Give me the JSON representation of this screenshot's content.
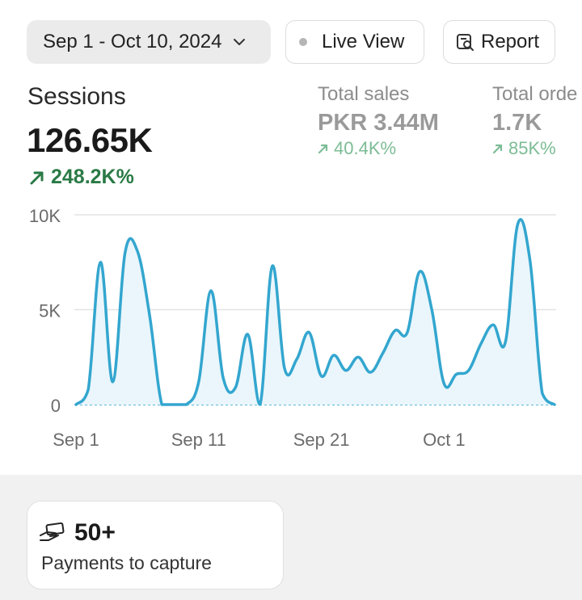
{
  "header": {
    "date_range": "Sep 1 - Oct 10, 2024",
    "live_view_label": "Live View",
    "report_label": "Report"
  },
  "metrics": {
    "sessions": {
      "label": "Sessions",
      "value": "126.65K",
      "change": "248.2K%"
    },
    "total_sales": {
      "label": "Total sales",
      "value": "PKR 3.44M",
      "change": "40.4K%"
    },
    "total_orders": {
      "label": "Total orde",
      "value": "1.7K",
      "change": "85K%"
    }
  },
  "colors": {
    "line": "#33a6cf",
    "fill": "#eaf6fb",
    "positive": "#2a7a46",
    "positive_faded": "#7cbc95"
  },
  "chart_data": {
    "type": "line",
    "x": [
      "Sep 1",
      "Sep 2",
      "Sep 3",
      "Sep 4",
      "Sep 5",
      "Sep 6",
      "Sep 7",
      "Sep 8",
      "Sep 9",
      "Sep 10",
      "Sep 11",
      "Sep 12",
      "Sep 13",
      "Sep 14",
      "Sep 15",
      "Sep 16",
      "Sep 17",
      "Sep 18",
      "Sep 19",
      "Sep 20",
      "Sep 21",
      "Sep 22",
      "Sep 23",
      "Sep 24",
      "Sep 25",
      "Sep 26",
      "Sep 27",
      "Sep 28",
      "Sep 29",
      "Sep 30",
      "Oct 1",
      "Oct 2",
      "Oct 3",
      "Oct 4",
      "Oct 5",
      "Oct 6",
      "Oct 7",
      "Oct 8",
      "Oct 9",
      "Oct 10"
    ],
    "series": [
      {
        "values": [
          0,
          800,
          7500,
          1200,
          8000,
          8100,
          4700,
          0,
          0,
          0,
          1200,
          6000,
          1400,
          900,
          3700,
          0,
          7300,
          1900,
          2400,
          3800,
          1500,
          2600,
          1800,
          2500,
          1700,
          2700,
          3900,
          3800,
          7000,
          5000,
          1100,
          1600,
          1800,
          3200,
          4200,
          3300,
          9500,
          7600,
          600,
          0
        ]
      }
    ],
    "x_ticks": [
      "Sep 1",
      "Sep 11",
      "Sep 21",
      "Oct 1"
    ],
    "y_ticks": [
      "0",
      "5K",
      "10K"
    ],
    "ylim": [
      0,
      10000
    ],
    "grid": true,
    "baseline": "dotted"
  },
  "card": {
    "count": "50+",
    "label": "Payments to capture"
  }
}
